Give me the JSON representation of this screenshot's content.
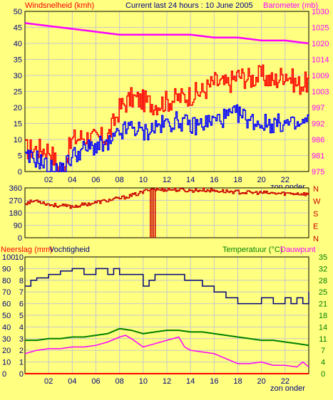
{
  "header": {
    "left": "Windsnelheid (kmh)",
    "center": "Current last 24 hours : 10 June 2005",
    "right": "Barometer (mb)"
  },
  "colors": {
    "background": "#ffff80",
    "grid": "#c8c8c8",
    "wind_gust": "#ff0000",
    "wind_avg": "#0000ff",
    "pressure": "#ff00ff",
    "direction": "#cc0000",
    "humidity": "#000080",
    "temperature": "#008000",
    "dewpoint": "#ff00ff",
    "rain": "#ff0000",
    "right_axis_text": "#ff00ff",
    "temp_label": "#008000",
    "dir_label": "#cc0000"
  },
  "chart_data": [
    {
      "type": "line",
      "title": "Current last 24 hours : 10 June 2005",
      "ylabel": "Windsnelheid (kmh)",
      "y2label": "Barometer (mb)",
      "ylim": [
        0,
        50
      ],
      "y2lim": [
        975,
        1030
      ],
      "yticks": [
        "0",
        "5",
        "10",
        "15",
        "20",
        "25",
        "30",
        "35",
        "40",
        "45",
        "50"
      ],
      "y2ticks": [
        "975",
        "981",
        "986",
        "992",
        "997",
        "1003",
        "1009",
        "1014",
        "1020",
        "1025",
        "1030"
      ],
      "xticks": [
        "02",
        "04",
        "06",
        "08",
        "10",
        "12",
        "14",
        "16",
        "18",
        "20",
        "22"
      ],
      "annotation": "zon onder",
      "grid": true,
      "series": [
        {
          "name": "wind gust",
          "kind": "line",
          "axis": "left",
          "x": [
            0,
            1,
            2,
            3,
            4,
            5,
            6,
            7,
            8,
            9,
            10,
            11,
            12,
            13,
            14,
            15,
            16,
            17,
            18,
            19,
            20,
            21,
            22,
            23,
            24
          ],
          "values": [
            7,
            7,
            7,
            0,
            10,
            11,
            10,
            11,
            20,
            23,
            22,
            21,
            22,
            23,
            24,
            25,
            28,
            27,
            30,
            29,
            30,
            28,
            31,
            27,
            28
          ]
        },
        {
          "name": "wind average",
          "kind": "line",
          "axis": "left",
          "x": [
            0,
            1,
            2,
            3,
            4,
            5,
            6,
            7,
            8,
            9,
            10,
            11,
            12,
            13,
            14,
            15,
            16,
            17,
            18,
            19,
            20,
            21,
            22,
            23,
            24
          ],
          "values": [
            4,
            4,
            1,
            0,
            5,
            7,
            8,
            8,
            12,
            14,
            12,
            14,
            15,
            16,
            14,
            15,
            16,
            17,
            18,
            16,
            15,
            15,
            15,
            14,
            16
          ]
        },
        {
          "name": "Barometer",
          "kind": "line",
          "axis": "right",
          "x": [
            0,
            2,
            4,
            6,
            8,
            10,
            12,
            14,
            16,
            18,
            20,
            22,
            24
          ],
          "values": [
            1026,
            1025,
            1024,
            1023,
            1022,
            1022,
            1022,
            1022,
            1021,
            1021,
            1020,
            1020,
            1019
          ]
        }
      ]
    },
    {
      "type": "line",
      "ylim": [
        0,
        360
      ],
      "yticks": [
        "0",
        "90",
        "180",
        "270",
        "360"
      ],
      "compass": [
        "N",
        "W",
        "S",
        "E",
        "N"
      ],
      "grid": true,
      "series": [
        {
          "name": "wind direction",
          "kind": "line",
          "x": [
            0,
            1,
            2,
            3,
            4,
            5,
            6,
            7,
            8,
            9,
            10,
            10.5,
            11,
            11.5,
            12,
            13,
            14,
            15,
            16,
            17,
            18,
            19,
            20,
            21,
            22,
            23,
            24
          ],
          "values": [
            250,
            270,
            240,
            230,
            225,
            240,
            255,
            270,
            285,
            305,
            330,
            355,
            350,
            345,
            350,
            345,
            340,
            345,
            340,
            335,
            330,
            325,
            325,
            320,
            320,
            320,
            315
          ]
        }
      ]
    },
    {
      "type": "line",
      "ylabel": "Neerslag (mm)",
      "ylabel2": "Vochtigheid",
      "y2label": "Temperatuur (°C)",
      "y2label2": "Dauwpunt",
      "ylim": [
        0,
        10
      ],
      "humidity_lim": [
        0,
        100
      ],
      "y2lim": [
        0,
        35
      ],
      "yticks_rain": [
        "0",
        "1",
        "2",
        "3",
        "4",
        "5",
        "6",
        "7",
        "8",
        "9",
        "10"
      ],
      "yticks_humidity": [
        "0",
        "10",
        "20",
        "30",
        "40",
        "50",
        "60",
        "70",
        "80",
        "90",
        "100"
      ],
      "y2ticks": [
        "0",
        "4",
        "7",
        "11",
        "14",
        "18",
        "21",
        "25",
        "28",
        "32",
        "35"
      ],
      "xticks": [
        "02",
        "04",
        "06",
        "08",
        "10",
        "12",
        "14",
        "16",
        "18",
        "20",
        "22"
      ],
      "annotation": "zon onder",
      "grid": true,
      "series": [
        {
          "name": "Vochtigheid",
          "kind": "step",
          "axis": "humidity",
          "x": [
            0,
            0.5,
            1,
            2,
            3,
            4,
            5,
            6,
            7,
            7.5,
            8,
            9,
            10,
            10.5,
            11,
            12,
            13,
            13.5,
            14,
            15,
            16,
            17,
            18,
            19,
            20,
            21,
            22,
            22.5,
            23,
            23.5,
            24
          ],
          "values": [
            75,
            80,
            82,
            85,
            88,
            90,
            85,
            90,
            85,
            90,
            85,
            85,
            75,
            80,
            85,
            85,
            85,
            80,
            80,
            75,
            70,
            65,
            60,
            60,
            65,
            60,
            65,
            60,
            65,
            60,
            70
          ]
        },
        {
          "name": "Temperatuur",
          "kind": "line",
          "axis": "right",
          "x": [
            0,
            1,
            2,
            3,
            4,
            5,
            6,
            7,
            8,
            9,
            10,
            11,
            12,
            13,
            14,
            15,
            16,
            17,
            18,
            19,
            20,
            21,
            22,
            23,
            24
          ],
          "values": [
            10,
            10,
            10.5,
            10.5,
            11,
            11,
            11.5,
            12,
            13.5,
            13,
            12,
            12.5,
            13,
            13,
            12.5,
            12.5,
            12,
            11.5,
            11,
            10.5,
            10,
            10,
            9.5,
            9,
            8.5
          ]
        },
        {
          "name": "Dauwpunt",
          "kind": "line",
          "axis": "right",
          "x": [
            0,
            1,
            2,
            3,
            4,
            5,
            6,
            7,
            8,
            8.5,
            9,
            10,
            11,
            12,
            13,
            13.5,
            14,
            15,
            16,
            17,
            18,
            19,
            20,
            21,
            22,
            23,
            23.5,
            24
          ],
          "values": [
            6,
            7,
            7.5,
            7.5,
            8,
            8,
            8.5,
            9.5,
            11,
            11.5,
            10.5,
            8,
            9,
            10,
            11,
            8,
            7,
            6.5,
            6,
            4.5,
            3,
            3,
            3.5,
            2.5,
            2.5,
            2,
            3.5,
            2
          ]
        },
        {
          "name": "Neerslag",
          "kind": "line",
          "axis": "rain",
          "x": [
            0,
            24
          ],
          "values": [
            0,
            0
          ]
        }
      ]
    }
  ]
}
